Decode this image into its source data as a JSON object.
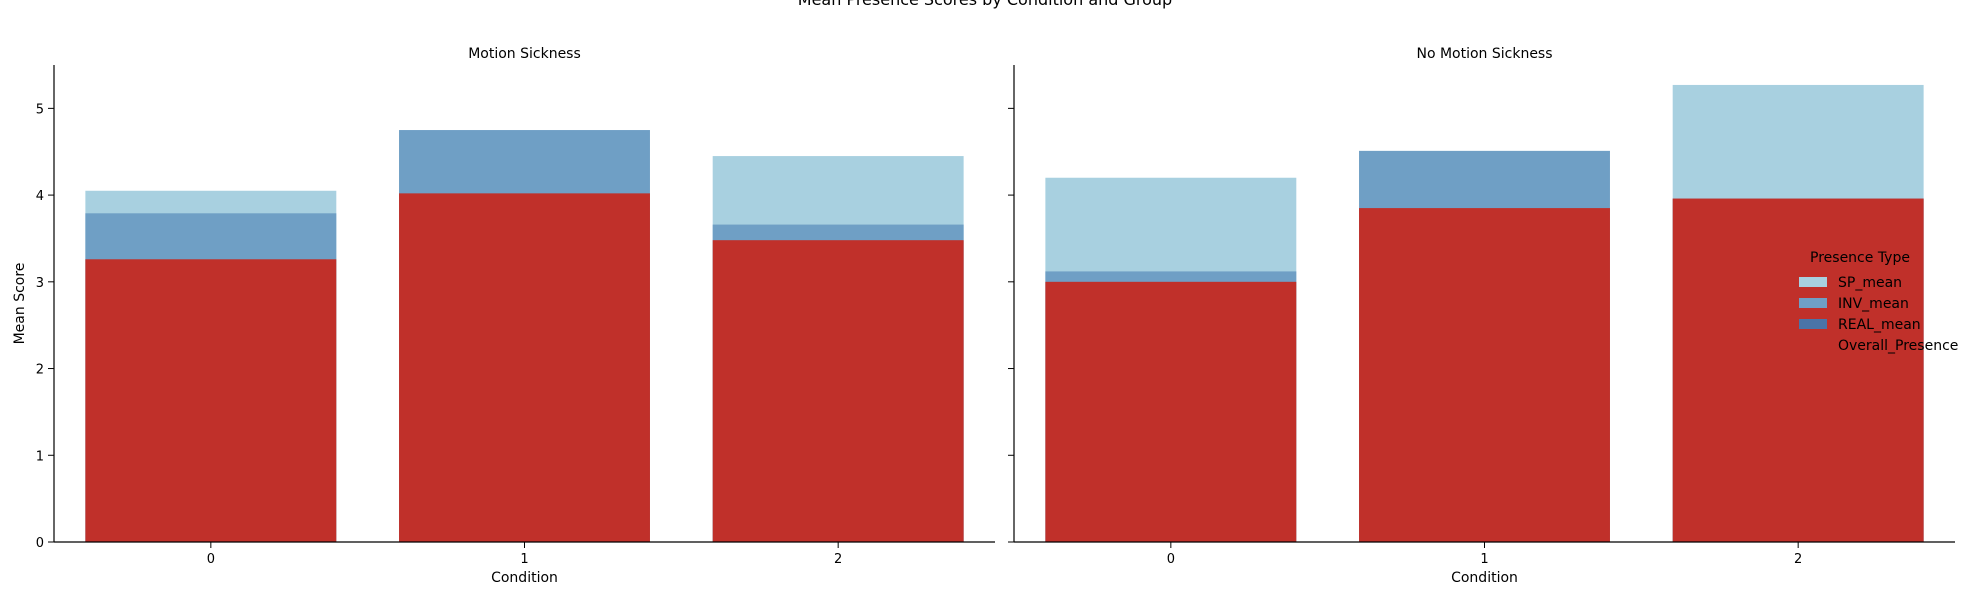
{
  "figure_title": "Mean Presence Scores by Condition and Group",
  "legend": {
    "title": "Presence Type",
    "placement": "center-right"
  },
  "colors": {
    "SP_mean": "#a8d0e0",
    "INV_mean": "#6f9fc5",
    "REAL_mean": "#4a74a8",
    "Overall_Presence": "#c0302a"
  },
  "chart_data": {
    "type": "bar",
    "ylim": [
      0,
      5.5
    ],
    "yticks": [
      0,
      1,
      2,
      3,
      4,
      5
    ],
    "xlabel": "Condition",
    "ylabel": "Mean Score",
    "categories": [
      "0",
      "1",
      "2"
    ],
    "series_names": [
      "SP_mean",
      "INV_mean",
      "REAL_mean",
      "Overall_Presence"
    ],
    "panels": [
      {
        "title": "Motion Sickness",
        "series": [
          {
            "name": "SP_mean",
            "values": [
              4.05,
              4.02,
              4.45
            ]
          },
          {
            "name": "INV_mean",
            "values": [
              3.79,
              4.75,
              3.66
            ]
          },
          {
            "name": "REAL_mean",
            "values": [
              null,
              null,
              null
            ]
          },
          {
            "name": "Overall_Presence",
            "values": [
              3.26,
              4.02,
              3.48
            ]
          }
        ]
      },
      {
        "title": "No Motion Sickness",
        "series": [
          {
            "name": "SP_mean",
            "values": [
              4.2,
              3.85,
              5.27
            ]
          },
          {
            "name": "INV_mean",
            "values": [
              3.12,
              4.51,
              3.96
            ]
          },
          {
            "name": "REAL_mean",
            "values": [
              null,
              null,
              null
            ]
          },
          {
            "name": "Overall_Presence",
            "values": [
              3.0,
              3.85,
              3.96
            ]
          }
        ]
      }
    ]
  }
}
